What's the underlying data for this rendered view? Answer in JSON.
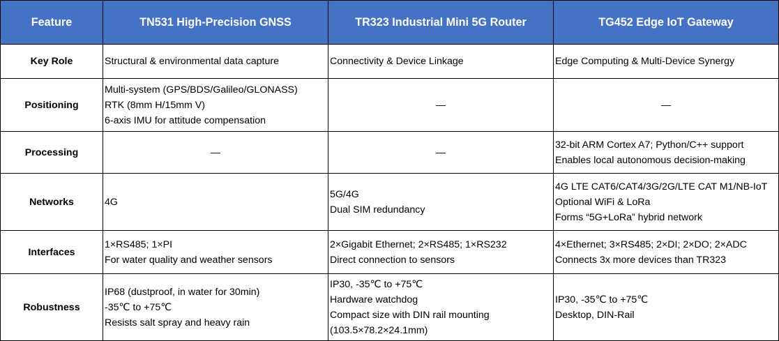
{
  "table": {
    "headers": [
      "Feature",
      "TN531 High-Precision GNSS",
      "TR323 Industrial Mini 5G Router",
      "TG452 Edge IoT Gateway"
    ],
    "rows": [
      {
        "feature": "Key Role",
        "cells": [
          [
            "Structural & environmental data capture"
          ],
          [
            "Connectivity & Device Linkage"
          ],
          [
            "Edge Computing & Multi-Device Synergy"
          ]
        ]
      },
      {
        "feature": "Positioning",
        "cells": [
          [
            "Multi-system (GPS/BDS/Galileo/GLONASS)",
            "RTK (8mm H/15mm V)",
            "6-axis IMU for attitude compensation"
          ],
          [
            "—"
          ],
          [
            "—"
          ]
        ]
      },
      {
        "feature": "Processing",
        "cells": [
          [
            "—"
          ],
          [
            "—"
          ],
          [
            "32-bit ARM Cortex A7; Python/C++ support",
            "Enables local autonomous decision-making"
          ]
        ]
      },
      {
        "feature": "Networks",
        "cells": [
          [
            "4G"
          ],
          [
            "5G/4G",
            "Dual SIM redundancy"
          ],
          [
            "4G LTE CAT6/CAT4/3G/2G/LTE CAT M1/NB-IoT",
            "Optional WiFi & LoRa",
            "Forms “5G+LoRa” hybrid network"
          ]
        ]
      },
      {
        "feature": "Interfaces",
        "cells": [
          [
            "1×RS485; 1×PI",
            "For water quality and weather sensors"
          ],
          [
            "2×Gigabit Ethernet; 2×RS485; 1×RS232",
            "Direct connection to sensors"
          ],
          [
            "4×Ethernet; 3×RS485; 2×DI; 2×DO; 2×ADC",
            "Connects 3x more devices than TR323"
          ]
        ]
      },
      {
        "feature": "Robustness",
        "cells": [
          [
            "IP68 (dustproof, in water for 30min)",
            "-35℃ to +75℃",
            "Resists salt spray and heavy rain"
          ],
          [
            "IP30, -35℃ to +75℃",
            "Hardware watchdog",
            "Compact size with DIN rail mounting",
            "(103.5×78.2×24.1mm)"
          ],
          [
            "IP30, -35℃ to +75℃",
            "Desktop, DIN-Rail"
          ]
        ]
      }
    ]
  }
}
